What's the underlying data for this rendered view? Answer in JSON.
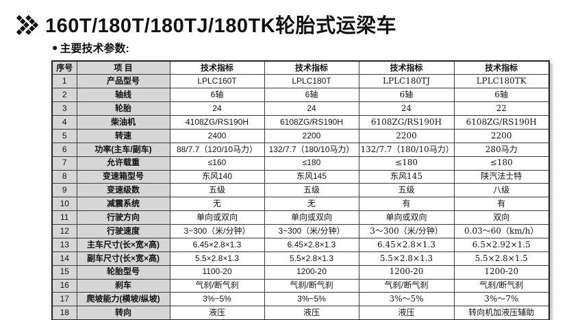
{
  "header": {
    "title": "160T/180T/180TJ/180TK轮胎式运梁车",
    "bullet": "●",
    "subtitle": "主要技术参数:"
  },
  "icons": {
    "title_marker": "double-chevron-icon",
    "subtitle_marker": "circle-bullet-icon"
  },
  "colors": {
    "header_fill": "#d6d6d6",
    "border": "#3a3a3a",
    "outer_border": "#222222",
    "shadow": "#c6c6c6",
    "text": "#111111",
    "background": "#ffffff"
  },
  "table": {
    "headers": [
      "序号",
      "项 目",
      "技术指标",
      "技术指标",
      "技术指标",
      "技术指标"
    ],
    "rows": [
      {
        "no": "1",
        "item": "产品型号",
        "values": [
          "LPLC160T",
          "LPLC180T",
          "LPLC180TJ",
          "LPLC180TK"
        ]
      },
      {
        "no": "2",
        "item": "轴线",
        "values": [
          "6轴",
          "6轴",
          "6轴",
          "6轴"
        ]
      },
      {
        "no": "3",
        "item": "轮胎",
        "values": [
          "24",
          "24",
          "24",
          "22"
        ]
      },
      {
        "no": "4",
        "item": "柴油机",
        "values": [
          "4108ZG/RS190H",
          "6108ZG/RS190H",
          "6108ZG/RS190H",
          "6108ZG/RS190H"
        ]
      },
      {
        "no": "5",
        "item": "转速",
        "values": [
          "2400",
          "2200",
          "2200",
          "2200"
        ]
      },
      {
        "no": "6",
        "item": "功率(主车/副车)",
        "values": [
          "88/7.7（120/10马力）",
          "132/7.7（180/10马力）",
          "132/7.7（180/10马力）",
          "280马力"
        ]
      },
      {
        "no": "7",
        "item": "允许载重",
        "values": [
          "≤160",
          "≤180",
          "≤180",
          "≤180"
        ]
      },
      {
        "no": "8",
        "item": "变速箱型号",
        "values": [
          "东风140",
          "东风145",
          "东风145",
          "陕汽法士特"
        ]
      },
      {
        "no": "9",
        "item": "变速级数",
        "values": [
          "五级",
          "五级",
          "五级",
          "八级"
        ]
      },
      {
        "no": "10",
        "item": "减震系统",
        "values": [
          "无",
          "无",
          "有",
          "有"
        ]
      },
      {
        "no": "11",
        "item": "行驶方向",
        "values": [
          "单向或双向",
          "单向或双向",
          "单向或双向",
          "双向"
        ]
      },
      {
        "no": "12",
        "item": "行驶速度",
        "values": [
          "3~300（米/分钟）",
          "3~300（米/分钟）",
          "3～300（米/分钟）",
          "0.03～60（km/h）"
        ]
      },
      {
        "no": "13",
        "item": "主车尺寸(长×宽×高)",
        "values": [
          "6.45×2.8×1.3",
          "6.45×2.8×1.3",
          "6.45×2.8×1.3",
          "6.5×2.92×1.5"
        ]
      },
      {
        "no": "14",
        "item": "副车尺寸(长×宽×高)",
        "values": [
          "5.5×2.8×1.3",
          "5.5×2.8×1.3",
          "5.5×2.8×1.3",
          "5.5×2.8×1.5"
        ]
      },
      {
        "no": "15",
        "item": "轮胎型号",
        "values": [
          "1100-20",
          "1200-20",
          "1200-20",
          "1200-20"
        ]
      },
      {
        "no": "16",
        "item": "刹车",
        "values": [
          "气刹/断气刹",
          "气刹/断气刹",
          "气刹/断气刹",
          "气刹/断气刹"
        ]
      },
      {
        "no": "17",
        "item": "爬坡能力(横坡/纵坡)",
        "values": [
          "3%~5%",
          "3%~5%",
          "3%～5%",
          "3%～7%"
        ]
      },
      {
        "no": "18",
        "item": "转向",
        "values": [
          "液压",
          "液压",
          "液压",
          "转向机加液压辅助"
        ]
      }
    ]
  }
}
